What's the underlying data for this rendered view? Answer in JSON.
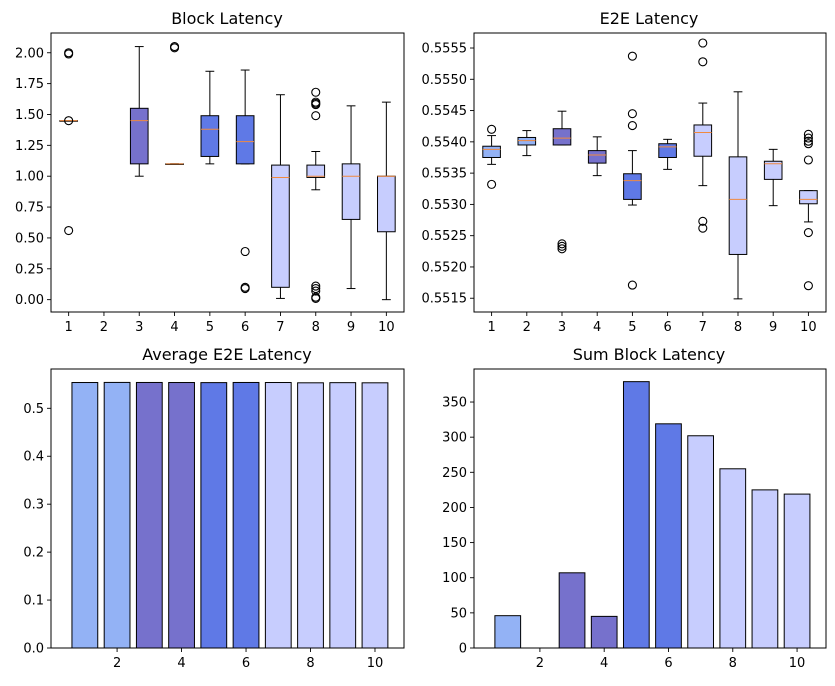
{
  "colors": {
    "light_blue": "#93b2f5",
    "purple": "#7671cc",
    "royal_blue": "#5f79e6",
    "lavender": "#c7cdfe",
    "median": "#f08a40",
    "edge": "#000000"
  },
  "chart_data": [
    {
      "type": "box",
      "title": "Block Latency",
      "xlabel": "",
      "ylabel": "",
      "categories": [
        "1",
        "2",
        "3",
        "4",
        "5",
        "6",
        "7",
        "8",
        "9",
        "10"
      ],
      "ylim": [
        -0.1,
        2.16
      ],
      "yticks": [
        "0.00",
        "0.25",
        "0.50",
        "0.75",
        "1.00",
        "1.25",
        "1.50",
        "1.75",
        "2.00"
      ],
      "grid": false,
      "boxes": [
        {
          "x": 1,
          "q1": 1.45,
          "median": 1.45,
          "q3": 1.45,
          "whislo": 1.45,
          "whishi": 1.45,
          "fliers": [
            2.0,
            1.99,
            1.45,
            0.56
          ],
          "color": "light_blue"
        },
        {
          "x": 2,
          "empty": true
        },
        {
          "x": 3,
          "q1": 1.1,
          "median": 1.45,
          "q3": 1.55,
          "whislo": 1.0,
          "whishi": 2.05,
          "fliers": [],
          "color": "purple"
        },
        {
          "x": 4,
          "q1": 1.1,
          "median": 1.1,
          "q3": 1.1,
          "whislo": 1.1,
          "whishi": 1.1,
          "fliers": [
            2.05,
            2.04
          ],
          "color": "purple"
        },
        {
          "x": 5,
          "q1": 1.16,
          "median": 1.38,
          "q3": 1.49,
          "whislo": 1.1,
          "whishi": 1.85,
          "fliers": [],
          "color": "royal_blue"
        },
        {
          "x": 6,
          "q1": 1.1,
          "median": 1.28,
          "q3": 1.49,
          "whislo": 1.1,
          "whishi": 1.86,
          "fliers": [
            0.39,
            0.1,
            0.09
          ],
          "color": "royal_blue"
        },
        {
          "x": 7,
          "q1": 0.1,
          "median": 0.99,
          "q3": 1.09,
          "whislo": 0.01,
          "whishi": 1.66,
          "fliers": [],
          "color": "lavender"
        },
        {
          "x": 8,
          "q1": 0.99,
          "median": 1.0,
          "q3": 1.09,
          "whislo": 0.89,
          "whishi": 1.2,
          "fliers": [
            1.68,
            1.6,
            1.59,
            1.58,
            1.49,
            0.11,
            0.09,
            0.07,
            0.02,
            0.01
          ],
          "color": "lavender"
        },
        {
          "x": 9,
          "q1": 0.65,
          "median": 1.0,
          "q3": 1.1,
          "whislo": 0.09,
          "whishi": 1.57,
          "fliers": [],
          "color": "lavender"
        },
        {
          "x": 10,
          "q1": 0.55,
          "median": 1.0,
          "q3": 1.0,
          "whislo": 0.0,
          "whishi": 1.6,
          "fliers": [],
          "color": "lavender"
        }
      ]
    },
    {
      "type": "box",
      "title": "E2E Latency",
      "xlabel": "",
      "ylabel": "",
      "categories": [
        "1",
        "2",
        "3",
        "4",
        "5",
        "6",
        "7",
        "8",
        "9",
        "10"
      ],
      "ylim": [
        0.55128,
        0.55574
      ],
      "yticks": [
        "0.5515",
        "0.5520",
        "0.5525",
        "0.5530",
        "0.5535",
        "0.5540",
        "0.5545",
        "0.5550",
        "0.5555"
      ],
      "grid": false,
      "boxes": [
        {
          "x": 1,
          "q1": 0.55375,
          "median": 0.55388,
          "q3": 0.55393,
          "whislo": 0.55364,
          "whishi": 0.5541,
          "fliers": [
            0.5542,
            0.55332
          ],
          "color": "light_blue"
        },
        {
          "x": 2,
          "q1": 0.55395,
          "median": 0.55402,
          "q3": 0.55407,
          "whislo": 0.55378,
          "whishi": 0.55418,
          "fliers": [],
          "color": "light_blue"
        },
        {
          "x": 3,
          "q1": 0.55395,
          "median": 0.55406,
          "q3": 0.55421,
          "whislo": 0.55395,
          "whishi": 0.55449,
          "fliers": [
            0.55237,
            0.55233,
            0.55229
          ],
          "color": "purple"
        },
        {
          "x": 4,
          "q1": 0.55366,
          "median": 0.55379,
          "q3": 0.55386,
          "whislo": 0.55346,
          "whishi": 0.55408,
          "fliers": [],
          "color": "purple"
        },
        {
          "x": 5,
          "q1": 0.55308,
          "median": 0.55338,
          "q3": 0.55349,
          "whislo": 0.55299,
          "whishi": 0.55386,
          "fliers": [
            0.55537,
            0.55445,
            0.55426,
            0.55171
          ],
          "color": "royal_blue"
        },
        {
          "x": 6,
          "q1": 0.55375,
          "median": 0.55392,
          "q3": 0.55397,
          "whislo": 0.55356,
          "whishi": 0.55404,
          "fliers": [],
          "color": "royal_blue"
        },
        {
          "x": 7,
          "q1": 0.55377,
          "median": 0.55415,
          "q3": 0.55427,
          "whislo": 0.5533,
          "whishi": 0.55462,
          "fliers": [
            0.55558,
            0.55528,
            0.55273,
            0.55262
          ],
          "color": "lavender"
        },
        {
          "x": 8,
          "q1": 0.5522,
          "median": 0.55308,
          "q3": 0.55376,
          "whislo": 0.55149,
          "whishi": 0.5548,
          "fliers": [],
          "color": "lavender"
        },
        {
          "x": 9,
          "q1": 0.5534,
          "median": 0.55365,
          "q3": 0.55369,
          "whislo": 0.55298,
          "whishi": 0.55388,
          "fliers": [],
          "color": "lavender"
        },
        {
          "x": 10,
          "q1": 0.55301,
          "median": 0.55308,
          "q3": 0.55322,
          "whislo": 0.55272,
          "whishi": 0.55322,
          "fliers": [
            0.55412,
            0.55406,
            0.55401,
            0.55397,
            0.55371,
            0.55255,
            0.5517
          ],
          "color": "lavender"
        }
      ]
    },
    {
      "type": "bar",
      "title": "Average E2E Latency",
      "xlabel": "",
      "ylabel": "",
      "categories": [
        "1",
        "2",
        "3",
        "4",
        "5",
        "6",
        "7",
        "8",
        "9",
        "10"
      ],
      "values": [
        0.5538,
        0.554,
        0.5539,
        0.5538,
        0.5536,
        0.5539,
        0.5538,
        0.5532,
        0.5535,
        0.5532
      ],
      "bar_colors": [
        "light_blue",
        "light_blue",
        "purple",
        "purple",
        "royal_blue",
        "royal_blue",
        "lavender",
        "lavender",
        "lavender",
        "lavender"
      ],
      "xlim": [
        -0.05,
        10.9
      ],
      "xticks": [
        "2",
        "4",
        "6",
        "8",
        "10"
      ],
      "ylim": [
        0,
        0.582
      ],
      "yticks": [
        "0.0",
        "0.1",
        "0.2",
        "0.3",
        "0.4",
        "0.5"
      ],
      "grid": false
    },
    {
      "type": "bar",
      "title": "Sum Block Latency",
      "xlabel": "",
      "ylabel": "",
      "categories": [
        "1",
        "2",
        "3",
        "4",
        "5",
        "6",
        "7",
        "8",
        "9",
        "10"
      ],
      "values": [
        46,
        0,
        107,
        45,
        379,
        319,
        302,
        255,
        225,
        219
      ],
      "bar_colors": [
        "light_blue",
        "light_blue",
        "purple",
        "purple",
        "royal_blue",
        "royal_blue",
        "lavender",
        "lavender",
        "lavender",
        "lavender"
      ],
      "xlim": [
        -0.05,
        10.9
      ],
      "xticks": [
        "2",
        "4",
        "6",
        "8",
        "10"
      ],
      "ylim": [
        0,
        397
      ],
      "yticks": [
        "0",
        "50",
        "100",
        "150",
        "200",
        "250",
        "300",
        "350"
      ],
      "grid": false
    }
  ]
}
